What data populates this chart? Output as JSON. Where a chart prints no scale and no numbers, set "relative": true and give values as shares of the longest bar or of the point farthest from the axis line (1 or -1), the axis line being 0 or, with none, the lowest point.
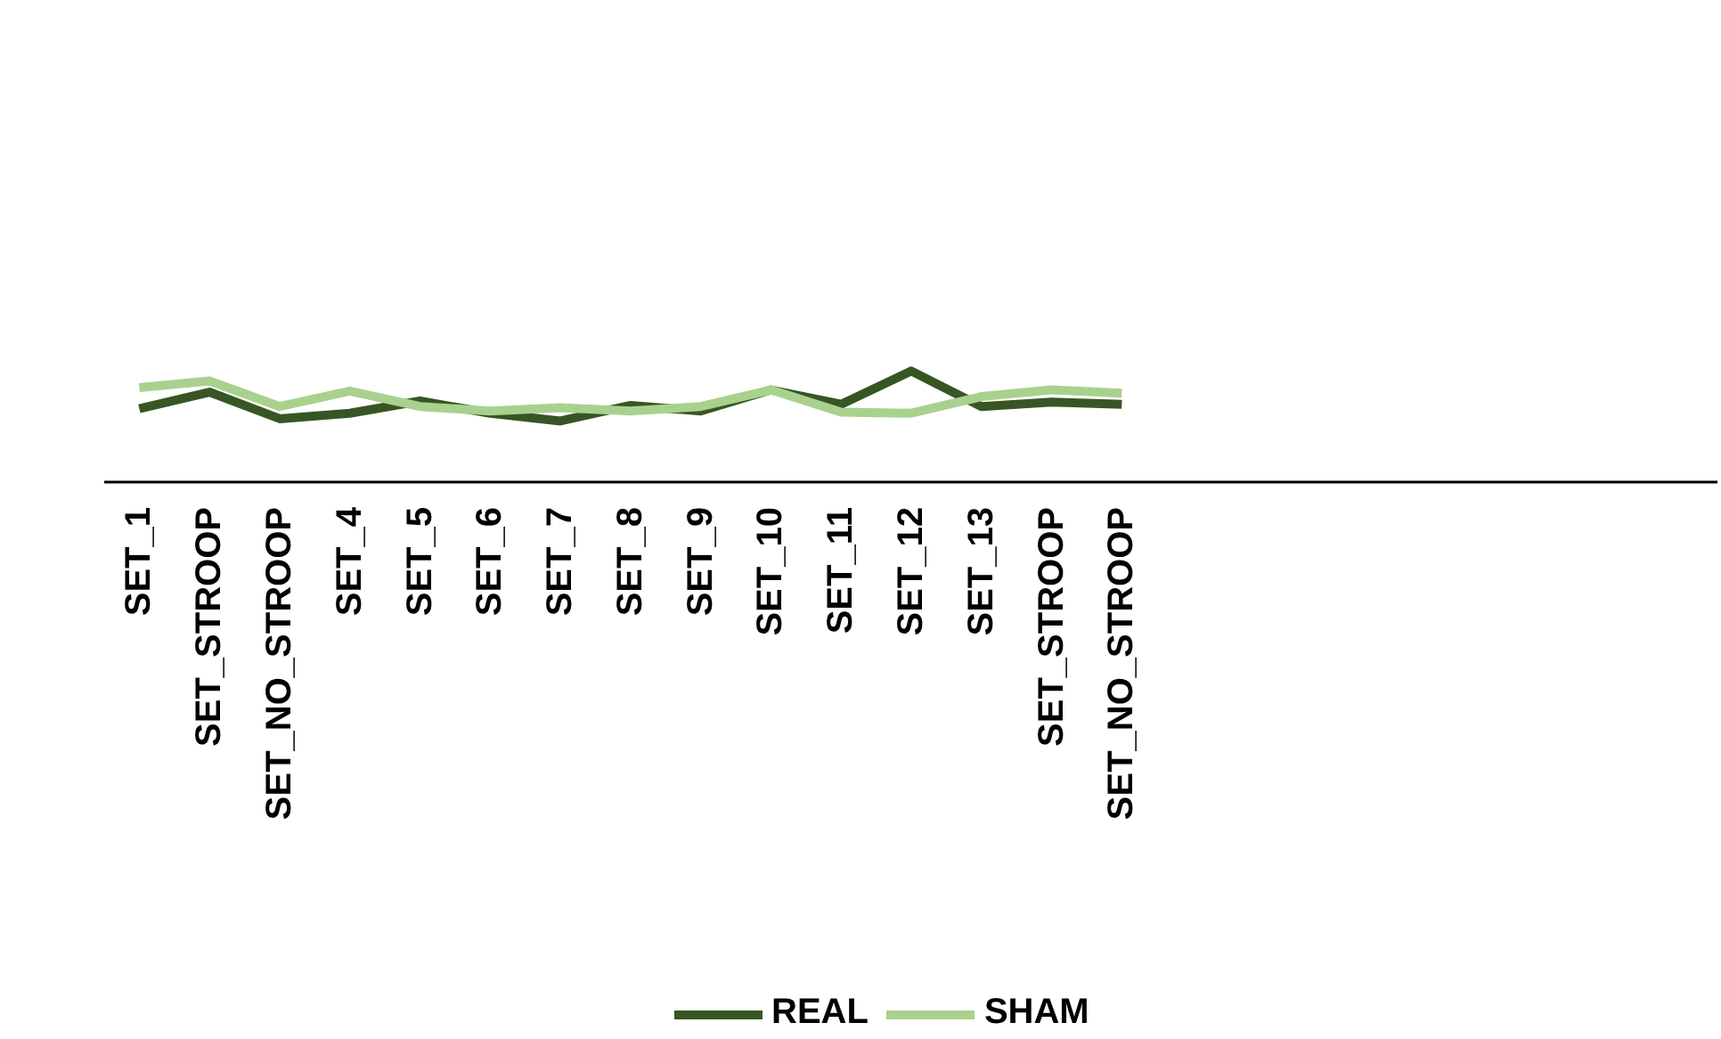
{
  "chart_data": {
    "type": "line",
    "relative": true,
    "legend": "bottom",
    "marker": "none",
    "line_style": "solid",
    "categories": [
      "SET_1",
      "SET_STROOP",
      "SET_NO_STROOP",
      "SET_4",
      "SET_5",
      "SET_6",
      "SET_7",
      "SET_8",
      "SET_9",
      "SET_10",
      "SET_11",
      "SET_12",
      "SET_13",
      "SET_STROOP",
      "SET_NO_STROOP",
      null,
      null,
      null,
      null,
      null,
      null,
      null,
      null
    ],
    "series": [
      {
        "name": "REAL",
        "color": "#375623",
        "values": [
          0.66,
          0.81,
          0.57,
          0.62,
          0.73,
          0.62,
          0.55,
          0.69,
          0.64,
          0.83,
          0.7,
          1.0,
          0.68,
          0.72,
          0.7,
          null,
          null,
          null,
          null,
          null,
          null,
          null,
          null
        ]
      },
      {
        "name": "SHAM",
        "color": "#a9d18e",
        "values": [
          0.85,
          0.91,
          0.68,
          0.82,
          0.68,
          0.64,
          0.67,
          0.64,
          0.68,
          0.83,
          0.63,
          0.62,
          0.77,
          0.83,
          0.8,
          null,
          null,
          null,
          null,
          null,
          null,
          null,
          null
        ]
      }
    ]
  }
}
